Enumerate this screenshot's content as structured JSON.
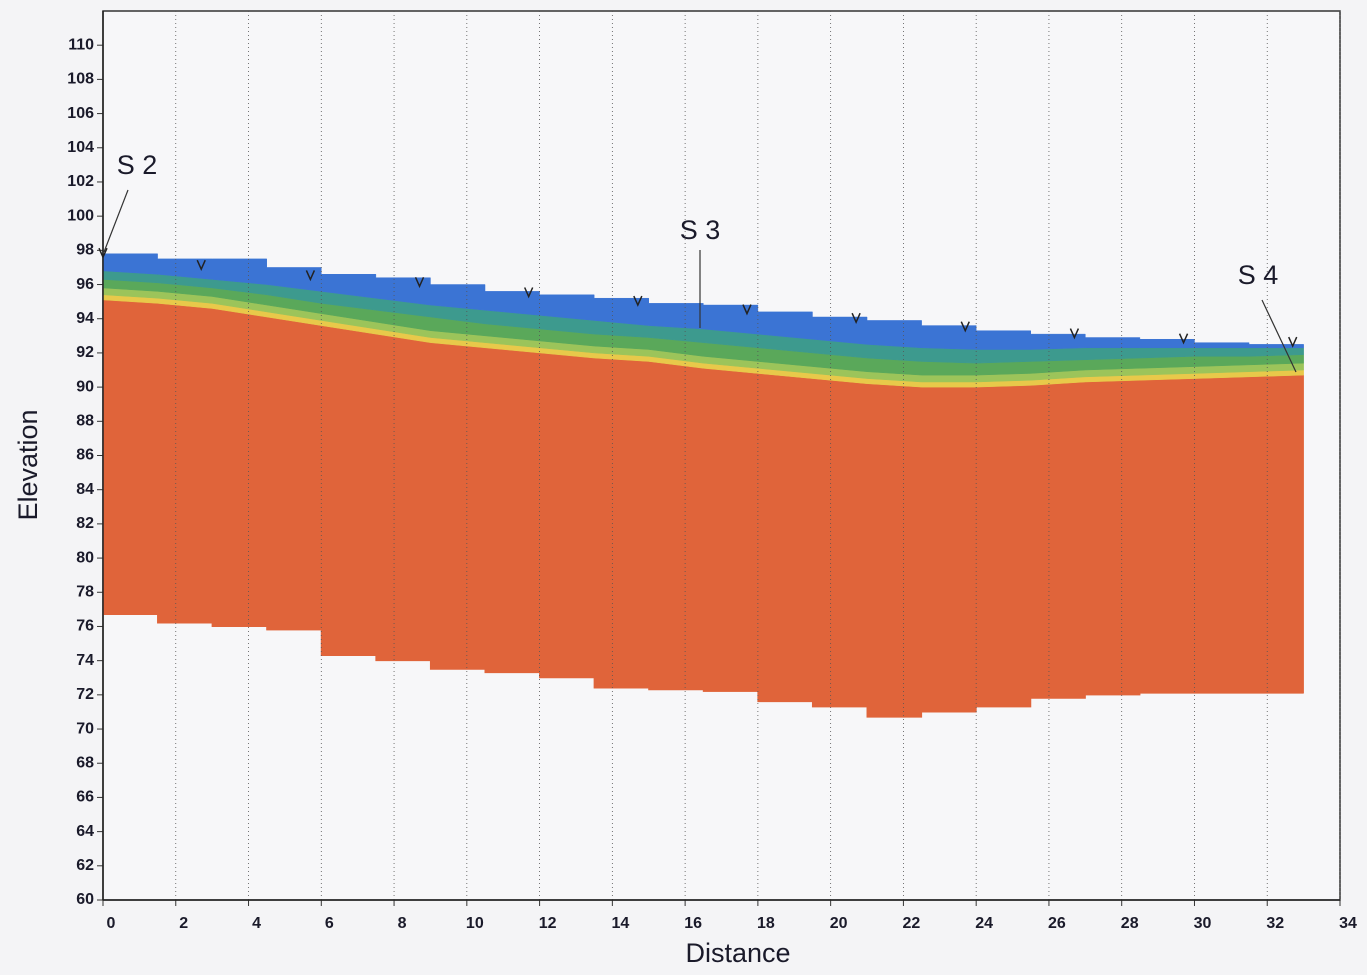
{
  "chart_data": {
    "type": "layers",
    "x_label": "Distance",
    "y_label": "Elevation",
    "xlim": [
      0,
      34
    ],
    "ylim": [
      60,
      112
    ],
    "xticks": [
      0,
      2,
      4,
      6,
      8,
      10,
      12,
      14,
      16,
      18,
      20,
      22,
      24,
      26,
      28,
      30,
      32,
      34
    ],
    "yticks": [
      60,
      62,
      64,
      66,
      68,
      70,
      72,
      74,
      76,
      78,
      80,
      82,
      84,
      86,
      88,
      90,
      92,
      94,
      96,
      98,
      100,
      102,
      104,
      106,
      108,
      110
    ],
    "grid": true,
    "x": [
      0,
      1.5,
      3,
      4.5,
      6,
      7.5,
      9,
      10.5,
      12,
      13.5,
      15,
      16.5,
      18,
      19.5,
      21,
      22.5,
      24,
      25.5,
      27,
      28.5,
      30,
      31.5,
      33
    ],
    "series": [
      {
        "step": true,
        "values": [
          76.7,
          76.2,
          76.0,
          75.8,
          74.3,
          74.0,
          73.5,
          73.3,
          73.0,
          72.4,
          72.3,
          72.2,
          71.6,
          71.3,
          70.7,
          71.0,
          71.3,
          71.8,
          72.0,
          72.1,
          72.1,
          72.1,
          72.1
        ]
      },
      {
        "color": "#e0643a",
        "values": [
          95.1,
          94.9,
          94.6,
          94.1,
          93.6,
          93.1,
          92.6,
          92.3,
          92.0,
          91.7,
          91.5,
          91.1,
          90.8,
          90.5,
          90.2,
          90.0,
          90.0,
          90.1,
          90.3,
          90.4,
          90.5,
          90.6,
          90.7
        ]
      },
      {
        "color": "#e8c94a",
        "values": [
          95.4,
          95.2,
          94.9,
          94.4,
          93.9,
          93.4,
          92.9,
          92.6,
          92.3,
          92.0,
          91.8,
          91.4,
          91.1,
          90.8,
          90.5,
          90.3,
          90.3,
          90.4,
          90.6,
          90.7,
          90.8,
          90.9,
          91.0
        ]
      },
      {
        "color": "#9cc45a",
        "values": [
          95.8,
          95.6,
          95.3,
          94.8,
          94.3,
          93.8,
          93.3,
          93.0,
          92.7,
          92.4,
          92.2,
          91.8,
          91.5,
          91.2,
          90.9,
          90.7,
          90.7,
          90.8,
          91.0,
          91.1,
          91.2,
          91.3,
          91.4
        ]
      },
      {
        "color": "#5aa85a",
        "values": [
          96.3,
          96.1,
          95.8,
          95.4,
          94.9,
          94.5,
          94.1,
          93.7,
          93.4,
          93.1,
          92.9,
          92.6,
          92.3,
          92.0,
          91.7,
          91.5,
          91.4,
          91.5,
          91.6,
          91.7,
          91.8,
          91.8,
          91.9
        ]
      },
      {
        "color": "#3d9a8e",
        "values": [
          96.8,
          96.6,
          96.3,
          96.0,
          95.6,
          95.2,
          94.8,
          94.5,
          94.2,
          93.9,
          93.6,
          93.4,
          93.1,
          92.8,
          92.5,
          92.3,
          92.2,
          92.2,
          92.3,
          92.3,
          92.3,
          92.3,
          92.3
        ]
      },
      {
        "color": "#3b74d4",
        "step": true,
        "values": [
          97.8,
          97.5,
          97.5,
          97.0,
          96.6,
          96.4,
          96.0,
          95.6,
          95.4,
          95.2,
          94.9,
          94.8,
          94.4,
          94.1,
          93.9,
          93.6,
          93.3,
          93.1,
          92.9,
          92.8,
          92.6,
          92.5,
          92.5
        ]
      }
    ],
    "markers": {
      "x": [
        0,
        2.7,
        5.7,
        8.7,
        11.7,
        14.7,
        17.7,
        20.7,
        23.7,
        26.7,
        29.7,
        32.7
      ],
      "y": [
        97.6,
        96.9,
        96.3,
        95.9,
        95.3,
        94.8,
        94.3,
        93.8,
        93.3,
        92.9,
        92.6,
        92.4
      ]
    },
    "annotations": [
      "S 2",
      "S 3",
      "S 4"
    ]
  }
}
